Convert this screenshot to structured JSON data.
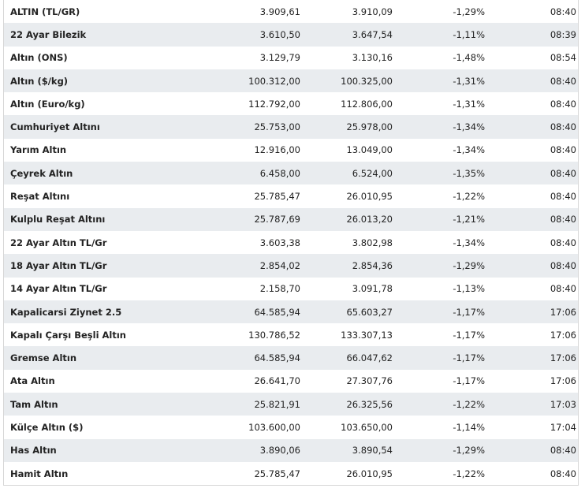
{
  "colors": {
    "row_alt_bg": "#e9ecef",
    "border": "#d7d7d7",
    "text": "#222222"
  },
  "rows": [
    {
      "name": "ALTIN (TL/GR)",
      "buy": "3.909,61",
      "sell": "3.910,09",
      "change": "-1,29%",
      "time": "08:40"
    },
    {
      "name": "22 Ayar Bilezik",
      "buy": "3.610,50",
      "sell": "3.647,54",
      "change": "-1,11%",
      "time": "08:39"
    },
    {
      "name": "Altın (ONS)",
      "buy": "3.129,79",
      "sell": "3.130,16",
      "change": "-1,48%",
      "time": "08:54"
    },
    {
      "name": "Altın ($/kg)",
      "buy": "100.312,00",
      "sell": "100.325,00",
      "change": "-1,31%",
      "time": "08:40"
    },
    {
      "name": "Altın (Euro/kg)",
      "buy": "112.792,00",
      "sell": "112.806,00",
      "change": "-1,31%",
      "time": "08:40"
    },
    {
      "name": "Cumhuriyet Altını",
      "buy": "25.753,00",
      "sell": "25.978,00",
      "change": "-1,34%",
      "time": "08:40"
    },
    {
      "name": "Yarım Altın",
      "buy": "12.916,00",
      "sell": "13.049,00",
      "change": "-1,34%",
      "time": "08:40"
    },
    {
      "name": "Çeyrek Altın",
      "buy": "6.458,00",
      "sell": "6.524,00",
      "change": "-1,35%",
      "time": "08:40"
    },
    {
      "name": "Reşat Altını",
      "buy": "25.785,47",
      "sell": "26.010,95",
      "change": "-1,22%",
      "time": "08:40"
    },
    {
      "name": "Kulplu Reşat Altını",
      "buy": "25.787,69",
      "sell": "26.013,20",
      "change": "-1,21%",
      "time": "08:40"
    },
    {
      "name": "22 Ayar Altın TL/Gr",
      "buy": "3.603,38",
      "sell": "3.802,98",
      "change": "-1,34%",
      "time": "08:40"
    },
    {
      "name": "18 Ayar Altın TL/Gr",
      "buy": "2.854,02",
      "sell": "2.854,36",
      "change": "-1,29%",
      "time": "08:40"
    },
    {
      "name": "14 Ayar Altın TL/Gr",
      "buy": "2.158,70",
      "sell": "3.091,78",
      "change": "-1,13%",
      "time": "08:40"
    },
    {
      "name": "Kapalicarsi Ziynet 2.5",
      "buy": "64.585,94",
      "sell": "65.603,27",
      "change": "-1,17%",
      "time": "17:06"
    },
    {
      "name": "Kapalı Çarşı Beşli Altın",
      "buy": "130.786,52",
      "sell": "133.307,13",
      "change": "-1,17%",
      "time": "17:06"
    },
    {
      "name": "Gremse Altın",
      "buy": "64.585,94",
      "sell": "66.047,62",
      "change": "-1,17%",
      "time": "17:06"
    },
    {
      "name": "Ata Altın",
      "buy": "26.641,70",
      "sell": "27.307,76",
      "change": "-1,17%",
      "time": "17:06"
    },
    {
      "name": "Tam Altın",
      "buy": "25.821,91",
      "sell": "26.325,56",
      "change": "-1,22%",
      "time": "17:03"
    },
    {
      "name": "Külçe Altın ($)",
      "buy": "103.600,00",
      "sell": "103.650,00",
      "change": "-1,14%",
      "time": "17:04"
    },
    {
      "name": "Has Altın",
      "buy": "3.890,06",
      "sell": "3.890,54",
      "change": "-1,29%",
      "time": "08:40"
    },
    {
      "name": "Hamit Altın",
      "buy": "25.785,47",
      "sell": "26.010,95",
      "change": "-1,22%",
      "time": "08:40"
    }
  ]
}
